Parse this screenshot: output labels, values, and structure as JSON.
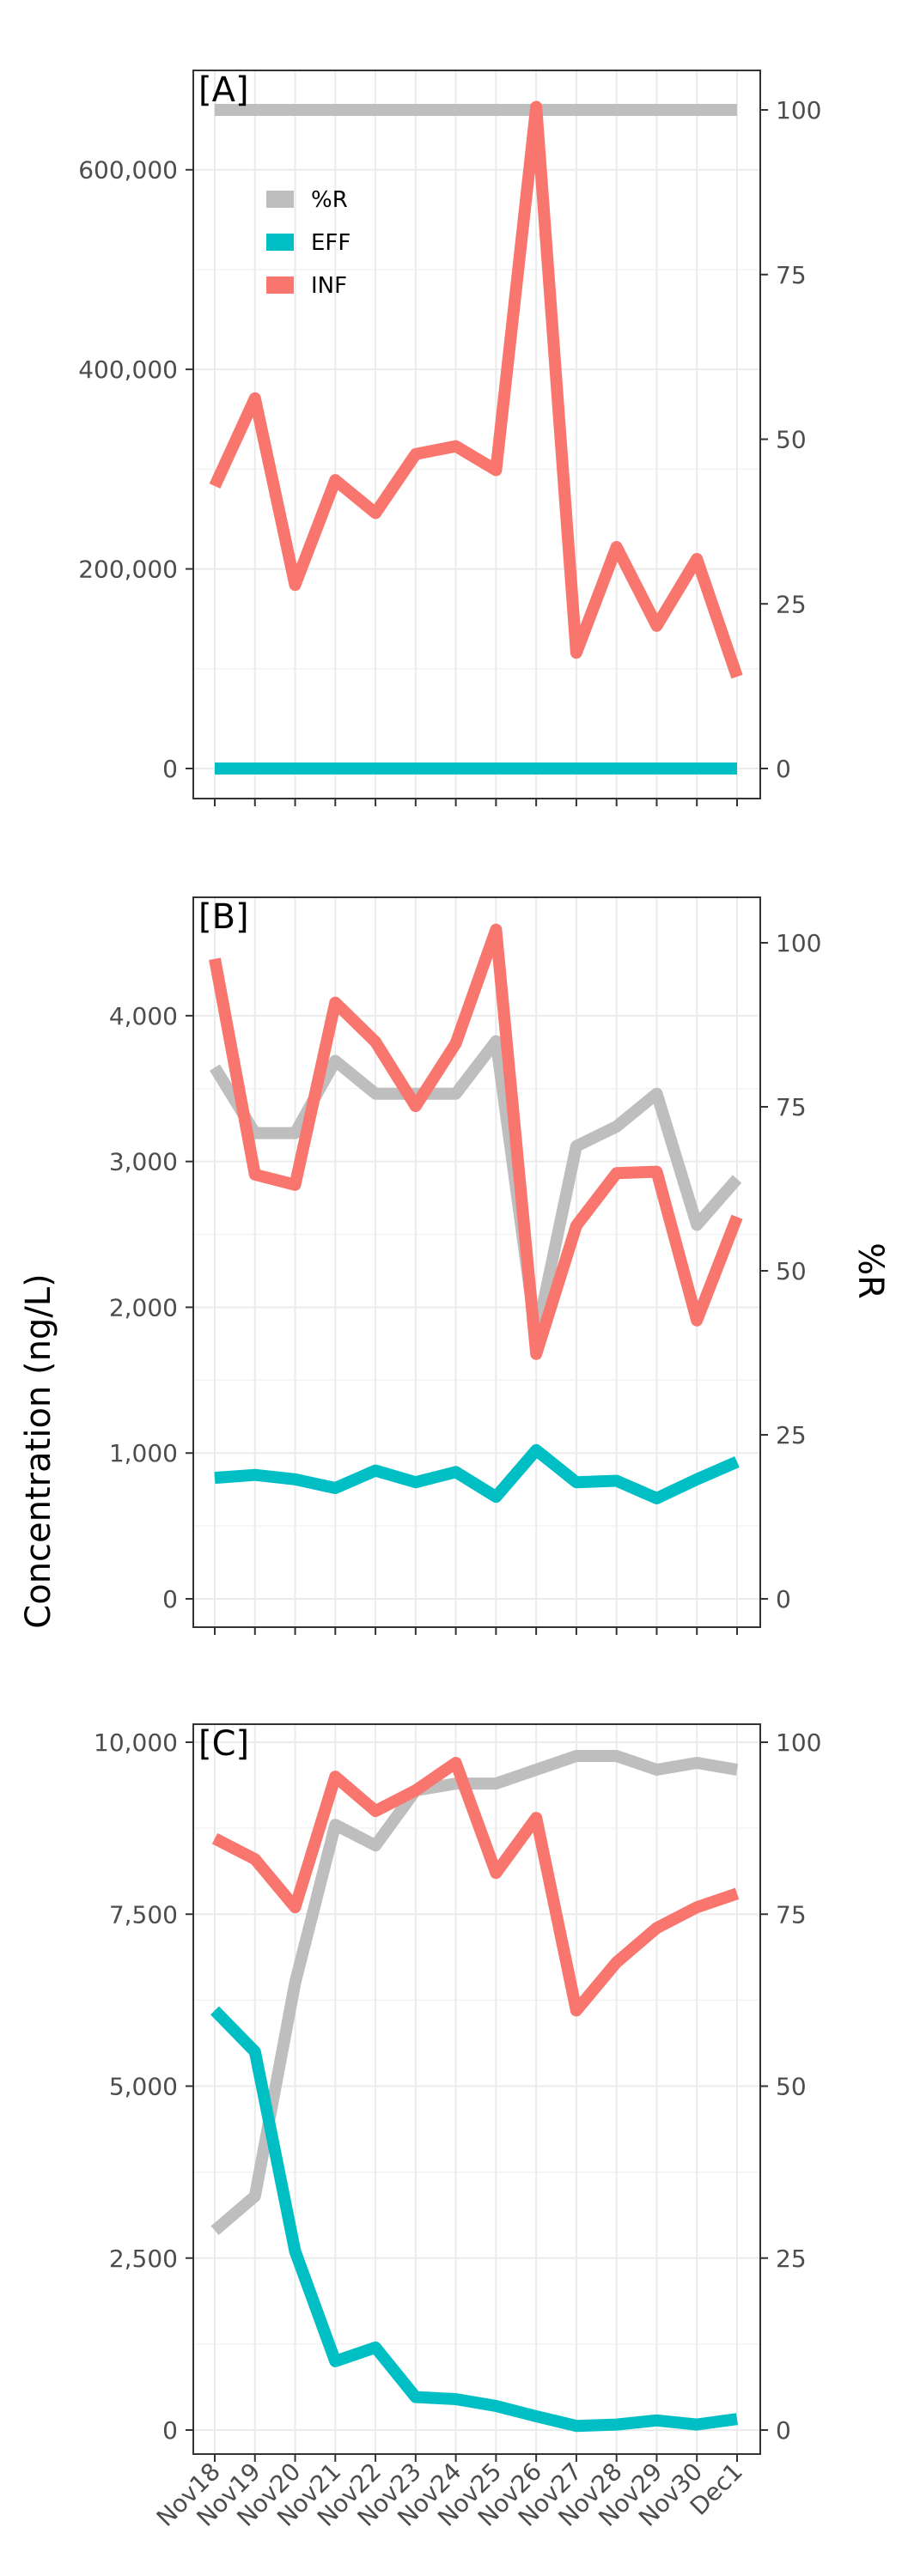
{
  "colors": {
    "R": "#bebebe",
    "EFF": "#00bfc4",
    "INF": "#f8766d"
  },
  "figure": {
    "ylabel_left": "Concentration (ng/L)",
    "ylabel_right": "%R"
  },
  "legend": {
    "items": [
      {
        "key": "R",
        "label": "%R"
      },
      {
        "key": "EFF",
        "label": "EFF"
      },
      {
        "key": "INF",
        "label": "INF"
      }
    ]
  },
  "chart_data": [
    {
      "type": "line",
      "panel": "[A]",
      "categories": [
        "Nov18",
        "Nov19",
        "Nov20",
        "Nov21",
        "Nov22",
        "Nov23",
        "Nov24",
        "Nov25",
        "Nov26",
        "Nov27",
        "Nov28",
        "Nov29",
        "Nov30",
        "Dec1"
      ],
      "ylim_left": [
        0,
        660000
      ],
      "yticks_left": [
        0,
        200000,
        400000,
        600000
      ],
      "yticks_left_labels": [
        "0",
        "200,000",
        "400,000",
        "600,000"
      ],
      "ylim_right": [
        0,
        100
      ],
      "yticks_right": [
        0,
        25,
        50,
        75,
        100
      ],
      "yticks_right_labels": [
        "0",
        "25",
        "50",
        "75",
        "100"
      ],
      "series": [
        {
          "name": "%R",
          "key": "R",
          "axis": "right",
          "values": [
            100,
            100,
            100,
            100,
            100,
            100,
            100,
            100,
            100,
            100,
            100,
            100,
            100,
            100
          ]
        },
        {
          "name": "EFF",
          "key": "EFF",
          "axis": "left",
          "values": [
            0,
            0,
            0,
            0,
            0,
            0,
            0,
            0,
            0,
            0,
            0,
            0,
            0,
            0
          ]
        },
        {
          "name": "INF",
          "key": "INF",
          "axis": "left",
          "values": [
            283000,
            371000,
            184000,
            289000,
            256000,
            315000,
            323000,
            299000,
            663000,
            116000,
            222000,
            143000,
            210000,
            92000
          ]
        }
      ]
    },
    {
      "type": "line",
      "panel": "[B]",
      "categories": [
        "Nov18",
        "Nov19",
        "Nov20",
        "Nov21",
        "Nov22",
        "Nov23",
        "Nov24",
        "Nov25",
        "Nov26",
        "Nov27",
        "Nov28",
        "Nov29",
        "Nov30",
        "Dec1"
      ],
      "ylim_left": [
        0,
        4500
      ],
      "yticks_left": [
        0,
        1000,
        2000,
        3000,
        4000
      ],
      "yticks_left_labels": [
        "0",
        "1,000",
        "2,000",
        "3,000",
        "4,000"
      ],
      "ylim_right": [
        0,
        100
      ],
      "yticks_right": [
        0,
        25,
        50,
        75,
        100
      ],
      "yticks_right_labels": [
        "0",
        "25",
        "50",
        "75",
        "100"
      ],
      "series": [
        {
          "name": "%R",
          "key": "R",
          "axis": "right",
          "values": [
            81,
            71,
            71,
            82,
            77,
            77,
            77,
            85,
            40,
            69,
            72,
            77,
            57,
            64
          ]
        },
        {
          "name": "EFF",
          "key": "EFF",
          "axis": "left",
          "values": [
            830,
            850,
            820,
            760,
            880,
            800,
            870,
            700,
            1020,
            800,
            810,
            690,
            820,
            940
          ]
        },
        {
          "name": "INF",
          "key": "INF",
          "axis": "left",
          "values": [
            4390,
            2910,
            2840,
            4090,
            3820,
            3380,
            3810,
            4590,
            1680,
            2560,
            2920,
            2930,
            1910,
            2620
          ]
        }
      ]
    },
    {
      "type": "line",
      "panel": "[C]",
      "categories": [
        "Nov18",
        "Nov19",
        "Nov20",
        "Nov21",
        "Nov22",
        "Nov23",
        "Nov24",
        "Nov25",
        "Nov26",
        "Nov27",
        "Nov28",
        "Nov29",
        "Nov30",
        "Dec1"
      ],
      "ylim_left": [
        0,
        10000
      ],
      "yticks_left": [
        0,
        2500,
        5000,
        7500,
        10000
      ],
      "yticks_left_labels": [
        "0",
        "2,500",
        "5,000",
        "7,500",
        "10,000"
      ],
      "ylim_right": [
        0,
        100
      ],
      "yticks_right": [
        0,
        25,
        50,
        75,
        100
      ],
      "yticks_right_labels": [
        "0",
        "25",
        "50",
        "75",
        "100"
      ],
      "series": [
        {
          "name": "%R",
          "key": "R",
          "axis": "right",
          "values": [
            29,
            34,
            65,
            88,
            85,
            93,
            94,
            94,
            96,
            98,
            98,
            96,
            97,
            96
          ]
        },
        {
          "name": "EFF",
          "key": "EFF",
          "axis": "left",
          "values": [
            6100,
            5500,
            2600,
            1000,
            1200,
            480,
            450,
            350,
            200,
            60,
            80,
            140,
            80,
            160
          ]
        },
        {
          "name": "INF",
          "key": "INF",
          "axis": "left",
          "values": [
            8600,
            8300,
            7600,
            9500,
            9000,
            9300,
            9700,
            8100,
            8900,
            6100,
            6800,
            7300,
            7600,
            7800
          ]
        }
      ]
    }
  ]
}
